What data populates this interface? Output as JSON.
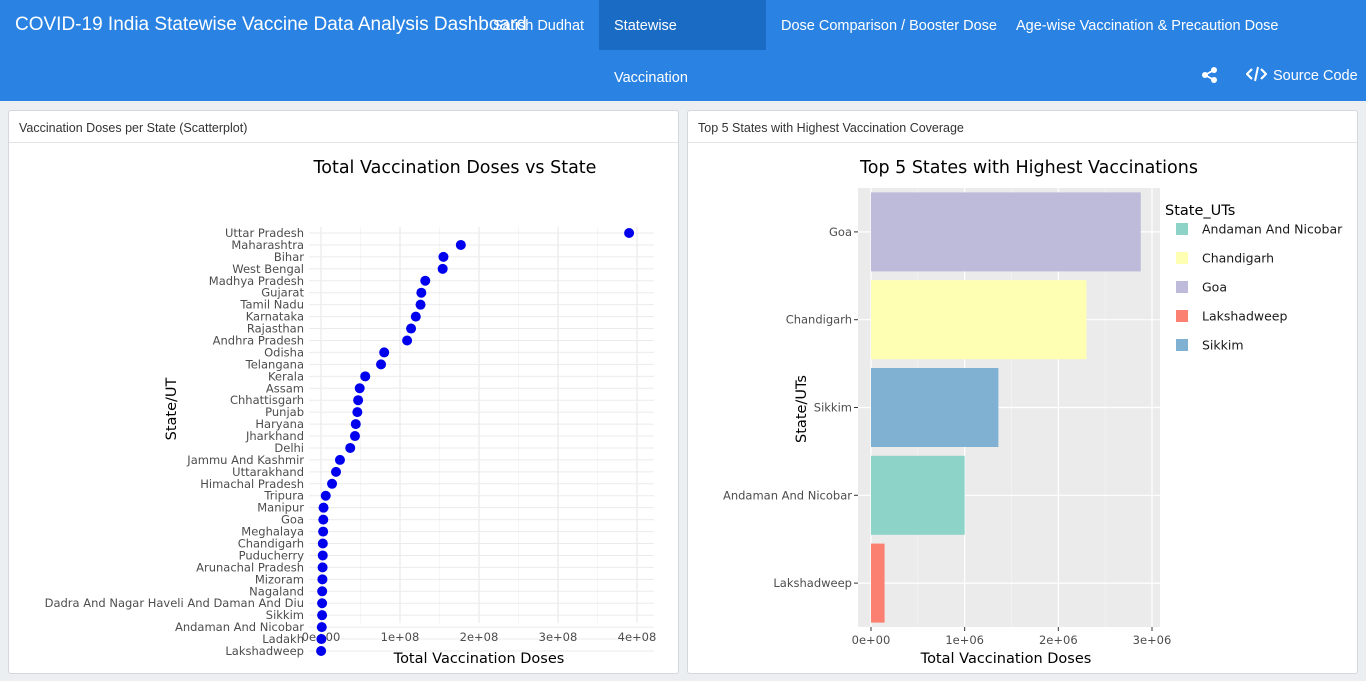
{
  "header": {
    "title": "COVID-19 India Statewise Vaccine Data Analysis Dashboard",
    "author": "Satish Dudhat",
    "tabs": [
      "Statewise Vaccination",
      "Dose Comparison / Booster Dose",
      "Age-wise Vaccination & Precaution Dose"
    ],
    "source_label": "Source Code",
    "share_icon": "share-icon",
    "code_icon": "code-icon"
  },
  "colors": {
    "navbar": "#2a83e3",
    "active_tab": "#1a6bc4",
    "points": "#0000ee",
    "panel_bg": "#ebebeb"
  },
  "left_panel": {
    "header": "Vaccination Doses per State (Scatterplot)"
  },
  "right_panel": {
    "header": "Top 5 States with Highest Vaccination Coverage"
  },
  "chart_data": [
    {
      "type": "scatter",
      "title": "Total Vaccination Doses vs State",
      "xlabel": "Total Vaccination Doses",
      "ylabel": "State/UT",
      "xlim": [
        0,
        400000000
      ],
      "xticks": [
        0,
        100000000,
        200000000,
        300000000,
        400000000
      ],
      "xtick_labels": [
        "0e+00",
        "1e+08",
        "2e+08",
        "3e+08",
        "4e+08"
      ],
      "categories": [
        "Uttar Pradesh",
        "Maharashtra",
        "Bihar",
        "West Bengal",
        "Madhya Pradesh",
        "Gujarat",
        "Tamil Nadu",
        "Karnataka",
        "Rajasthan",
        "Andhra Pradesh",
        "Odisha",
        "Telangana",
        "Kerala",
        "Assam",
        "Chhattisgarh",
        "Punjab",
        "Haryana",
        "Jharkhand",
        "Delhi",
        "Jammu And Kashmir",
        "Uttarakhand",
        "Himachal Pradesh",
        "Tripura",
        "Manipur",
        "Goa",
        "Meghalaya",
        "Chandigarh",
        "Puducherry",
        "Arunachal Pradesh",
        "Mizoram",
        "Nagaland",
        "Dadra And Nagar Haveli And Daman And Diu",
        "Sikkim",
        "Andaman And Nicobar",
        "Ladakh",
        "Lakshadweep"
      ],
      "values": [
        390000000,
        177000000,
        155000000,
        154000000,
        132000000,
        127000000,
        126000000,
        120000000,
        114000000,
        109000000,
        80000000,
        76000000,
        56000000,
        49000000,
        47000000,
        46000000,
        44000000,
        43000000,
        37000000,
        24000000,
        19000000,
        14000000,
        6000000,
        3200000,
        2900000,
        2700000,
        2300000,
        2200000,
        2000000,
        1800000,
        1500000,
        1400000,
        1400000,
        1000000,
        500000,
        140000
      ],
      "grid": true
    },
    {
      "type": "bar",
      "orientation": "horizontal",
      "title": "Top 5 States with Highest Vaccinations",
      "xlabel": "Total Vaccination Doses",
      "ylabel": "State/UTs",
      "xlim": [
        0,
        3000000
      ],
      "xticks": [
        0,
        1000000,
        2000000,
        3000000
      ],
      "xtick_labels": [
        "0e+00",
        "1e+06",
        "2e+06",
        "3e+06"
      ],
      "categories": [
        "Goa",
        "Chandigarh",
        "Sikkim",
        "Andaman And Nicobar",
        "Lakshadweep"
      ],
      "values": [
        2880000,
        2300000,
        1360000,
        1000000,
        145000
      ],
      "colors": [
        "#bebada",
        "#ffffb3",
        "#80b1d3",
        "#8dd3c7",
        "#fb8072"
      ],
      "legend": {
        "title": "State_UTs",
        "position": "right",
        "items": [
          {
            "label": "Andaman And Nicobar",
            "color": "#8dd3c7"
          },
          {
            "label": "Chandigarh",
            "color": "#ffffb3"
          },
          {
            "label": "Goa",
            "color": "#bebada"
          },
          {
            "label": "Lakshadweep",
            "color": "#fb8072"
          },
          {
            "label": "Sikkim",
            "color": "#80b1d3"
          }
        ]
      },
      "grid": true
    }
  ]
}
